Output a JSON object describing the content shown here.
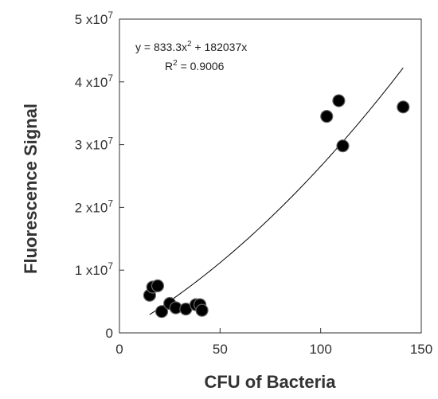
{
  "chart_data": {
    "type": "scatter",
    "xlabel": "CFU of Bacteria",
    "ylabel": "Fluorescence Signal",
    "xlim": [
      0,
      150
    ],
    "ylim": [
      0,
      50000000
    ],
    "x_ticks": [
      {
        "value": 0,
        "label": "0"
      },
      {
        "value": 50,
        "label": "50"
      },
      {
        "value": 100,
        "label": "100"
      },
      {
        "value": 150,
        "label": "150"
      }
    ],
    "y_ticks": [
      {
        "value": 0,
        "label": "0",
        "exp": ""
      },
      {
        "value": 10000000,
        "label": "1 x10",
        "exp": "7"
      },
      {
        "value": 20000000,
        "label": "2 x10",
        "exp": "7"
      },
      {
        "value": 30000000,
        "label": "3 x10",
        "exp": "7"
      },
      {
        "value": 40000000,
        "label": "4 x10",
        "exp": "7"
      },
      {
        "value": 50000000,
        "label": "5 x10",
        "exp": "7"
      }
    ],
    "points": [
      {
        "x": 15,
        "y": 6000000
      },
      {
        "x": 16.5,
        "y": 7300000
      },
      {
        "x": 19,
        "y": 7500000
      },
      {
        "x": 21,
        "y": 3400000
      },
      {
        "x": 25,
        "y": 4700000
      },
      {
        "x": 28,
        "y": 4000000
      },
      {
        "x": 33,
        "y": 3800000
      },
      {
        "x": 38,
        "y": 4500000
      },
      {
        "x": 40,
        "y": 4500000
      },
      {
        "x": 41,
        "y": 3600000
      },
      {
        "x": 103,
        "y": 34500000
      },
      {
        "x": 109,
        "y": 37000000
      },
      {
        "x": 111,
        "y": 29800000
      },
      {
        "x": 141,
        "y": 36000000
      }
    ],
    "trendline": {
      "a": 833.3,
      "b": 182037,
      "x_start": 15,
      "x_end": 141
    },
    "annotation": {
      "equation_prefix": "y = 833.3x",
      "equation_exp": "2",
      "equation_suffix": " + 182037x",
      "r2_prefix": "R",
      "r2_exp": "2",
      "r2_suffix": " = 0.9006"
    },
    "grid": false,
    "marker_color": "#000000",
    "marker_stroke": "#666666",
    "line_color": "#000000"
  }
}
